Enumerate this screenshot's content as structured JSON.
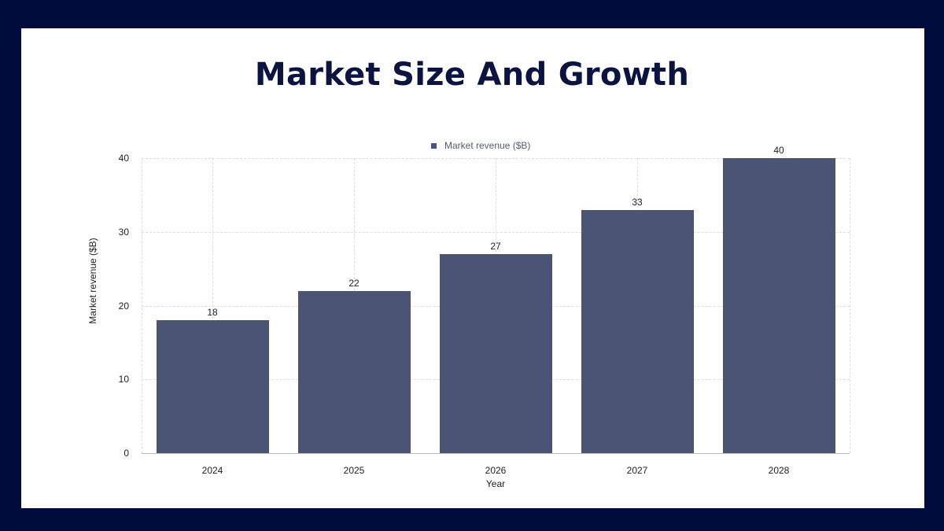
{
  "title": "Market Size And Growth",
  "colors": {
    "frame": "#000c3c",
    "bar": "#4a5474",
    "title": "#0b1440"
  },
  "legend": {
    "label": "Market revenue ($B)"
  },
  "axes": {
    "xlabel": "Year",
    "ylabel": "Market revenue ($B)",
    "yticks": [
      "0",
      "10",
      "20",
      "30",
      "40"
    ],
    "xticks": [
      "2024",
      "2025",
      "2026",
      "2027",
      "2028"
    ]
  },
  "bars": [
    {
      "category": "2024",
      "value": 18,
      "label": "18"
    },
    {
      "category": "2025",
      "value": 22,
      "label": "22"
    },
    {
      "category": "2026",
      "value": 27,
      "label": "27"
    },
    {
      "category": "2027",
      "value": 33,
      "label": "33"
    },
    {
      "category": "2028",
      "value": 40,
      "label": "40"
    }
  ],
  "chart_data": {
    "type": "bar",
    "title": "Market Size And Growth",
    "categories": [
      "2024",
      "2025",
      "2026",
      "2027",
      "2028"
    ],
    "series": [
      {
        "name": "Market revenue ($B)",
        "values": [
          18,
          22,
          27,
          33,
          40
        ]
      }
    ],
    "xlabel": "Year",
    "ylabel": "Market revenue ($B)",
    "ylim": [
      0,
      40
    ],
    "yticks": [
      0,
      10,
      20,
      30,
      40
    ],
    "grid": true,
    "legend_position": "top",
    "data_labels": true
  }
}
